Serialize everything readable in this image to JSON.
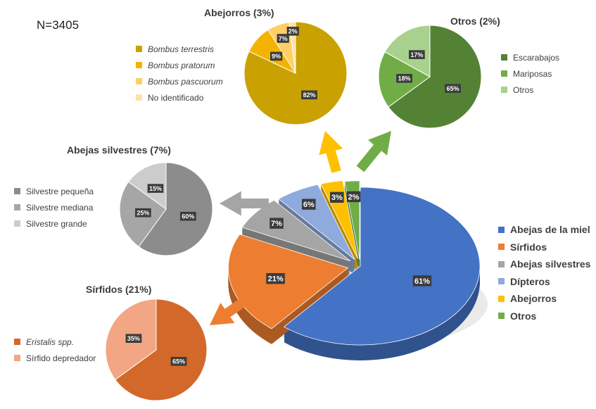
{
  "n_label": "N=3405",
  "chart_data": [
    {
      "id": "main",
      "type": "pie",
      "title": "",
      "labels": [
        "Abejas de la miel",
        "Sírfidos",
        "Abejas silvestres",
        "Dípteros",
        "Abejorros",
        "Otros"
      ],
      "values": [
        61,
        21,
        7,
        6,
        3,
        2
      ],
      "data_labels": [
        "61%",
        "21%",
        "7%",
        "6%",
        "3%",
        "2%"
      ],
      "colors": [
        "#4472c4",
        "#ed7d31",
        "#a5a5a5",
        "#8faadc",
        "#ffc000",
        "#70ad47"
      ],
      "legend_position": "right"
    },
    {
      "id": "abejorros",
      "type": "pie",
      "title": "Abejorros (3%)",
      "labels": [
        "Bombus terrestris",
        "Bombus pratorum",
        "Bombus pascuorum",
        "No identificado"
      ],
      "values": [
        82,
        9,
        7,
        2
      ],
      "data_labels": [
        "82%",
        "9%",
        "7%",
        "2%"
      ],
      "colors": [
        "#c9a100",
        "#f2b400",
        "#ffcf66",
        "#ffe2a8"
      ],
      "legend_position": "left"
    },
    {
      "id": "otros",
      "type": "pie",
      "title": "Otros (2%)",
      "labels": [
        "Escarabajos",
        "Mariposas",
        "Otros"
      ],
      "values": [
        65,
        18,
        17
      ],
      "data_labels": [
        "65%",
        "18%",
        "17%"
      ],
      "colors": [
        "#548235",
        "#70ad47",
        "#a9d18e"
      ],
      "legend_position": "right"
    },
    {
      "id": "silvestres",
      "type": "pie",
      "title": "Abejas silvestres (7%)",
      "labels": [
        "Silvestre pequeña",
        "Silvestre mediana",
        "Silvestre grande"
      ],
      "values": [
        60,
        25,
        15
      ],
      "data_labels": [
        "60%",
        "25%",
        "15%"
      ],
      "colors": [
        "#8c8c8c",
        "#a6a6a6",
        "#cccccc"
      ],
      "legend_position": "left"
    },
    {
      "id": "sirfidos",
      "type": "pie",
      "title": "Sírfidos (21%)",
      "labels": [
        "Eristalis spp.",
        "Sírfido depredador"
      ],
      "values": [
        65,
        35
      ],
      "data_labels": [
        "65%",
        "35%"
      ],
      "colors": [
        "#d2692a",
        "#f2a683"
      ],
      "legend_position": "left"
    }
  ]
}
